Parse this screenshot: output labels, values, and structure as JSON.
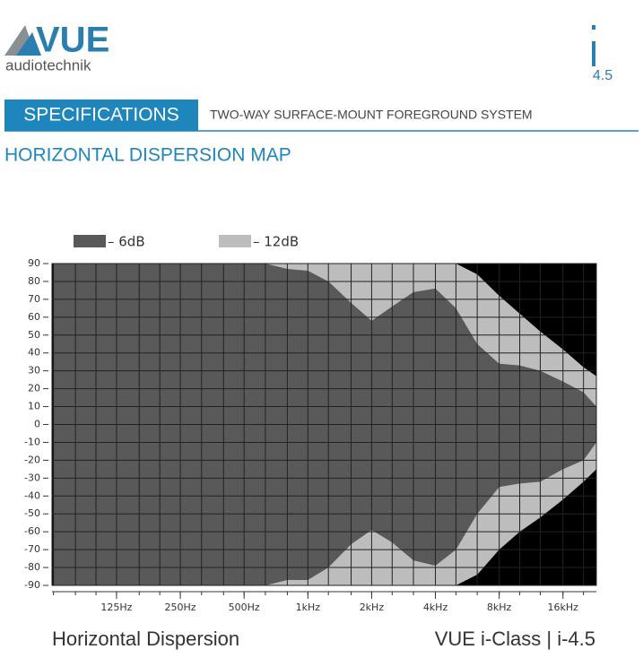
{
  "header": {
    "brand": "VUE",
    "brand_sub": "audiotechnik",
    "model": "4.5"
  },
  "section": {
    "label": "SPECIFICATIONS",
    "subtitle": "TWO-WAY SURFACE-MOUNT FOREGROUND SYSTEM"
  },
  "heading": "HORIZONTAL DISPERSION MAP",
  "chart_data": {
    "type": "dispersion",
    "log_x": true,
    "grid": true,
    "background": "#000000",
    "x": [
      63,
      80,
      100,
      125,
      160,
      200,
      250,
      315,
      400,
      500,
      630,
      800,
      1000,
      1250,
      1600,
      2000,
      2500,
      3150,
      4000,
      5000,
      6300,
      8000,
      10000,
      12500,
      16000,
      20000,
      23000
    ],
    "xlim": [
      62,
      23000
    ],
    "xticks": [
      {
        "value": 125,
        "label": "125Hz"
      },
      {
        "value": 250,
        "label": "250Hz"
      },
      {
        "value": 500,
        "label": "500Hz"
      },
      {
        "value": 1000,
        "label": "1kHz"
      },
      {
        "value": 2000,
        "label": "2kHz"
      },
      {
        "value": 4000,
        "label": "4kHz"
      },
      {
        "value": 8000,
        "label": "8kHz"
      },
      {
        "value": 16000,
        "label": "16kHz"
      }
    ],
    "xgrid": [
      63,
      80,
      100,
      125,
      160,
      200,
      250,
      315,
      400,
      500,
      630,
      800,
      1000,
      1250,
      1600,
      2000,
      2500,
      3150,
      4000,
      5000,
      6300,
      8000,
      10000,
      12500,
      16000,
      20000
    ],
    "ylim": [
      -90,
      90
    ],
    "yticks": [
      90,
      80,
      70,
      60,
      50,
      40,
      30,
      20,
      10,
      0,
      -10,
      -20,
      -30,
      -40,
      -50,
      -60,
      -70,
      -80,
      -90
    ],
    "series": [
      {
        "name": "– 12dB",
        "color": "#bdbdbd",
        "upper": [
          90,
          90,
          90,
          90,
          90,
          90,
          90,
          90,
          90,
          90,
          90,
          90,
          90,
          90,
          90,
          90,
          90,
          90,
          90,
          90,
          84,
          72,
          62,
          52,
          42,
          32,
          27
        ],
        "lower": [
          -90,
          -90,
          -90,
          -90,
          -90,
          -90,
          -90,
          -90,
          -90,
          -90,
          -90,
          -90,
          -90,
          -90,
          -90,
          -90,
          -90,
          -90,
          -90,
          -90,
          -84,
          -70,
          -60,
          -52,
          -42,
          -32,
          -25
        ]
      },
      {
        "name": "– 6dB",
        "color": "#595959",
        "upper": [
          90,
          90,
          90,
          90,
          90,
          90,
          90,
          90,
          90,
          90,
          90,
          87,
          86,
          80,
          68,
          58,
          66,
          74,
          76,
          65,
          45,
          34,
          33,
          30,
          24,
          18,
          10
        ],
        "lower": [
          -90,
          -90,
          -90,
          -90,
          -90,
          -90,
          -90,
          -90,
          -90,
          -90,
          -90,
          -87,
          -87,
          -80,
          -67,
          -59,
          -66,
          -76,
          -79,
          -70,
          -50,
          -35,
          -33,
          -32,
          -25,
          -20,
          -10
        ]
      }
    ]
  },
  "footer": {
    "left": "Horizontal Dispersion",
    "right": "VUE i-Class | i-4.5"
  }
}
